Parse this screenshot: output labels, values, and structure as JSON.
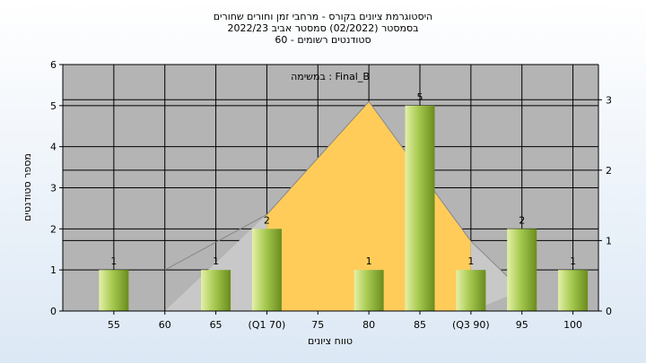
{
  "chart_data": {
    "type": "bar",
    "title_lines": [
      "היסטוגרמת ציונים בקורס - מרחבי זמן וחורים שחורים",
      "בסמסטר  (02/2022)  סמסטר אביב 2022/23",
      "סטודנטים רשומים - 60"
    ],
    "legend": "במשימה : Final_B",
    "categories": [
      "55",
      "60",
      "65",
      "(Q1 70)",
      "75",
      "80",
      "85",
      "(Q3 90)",
      "95",
      "100"
    ],
    "values": [
      1,
      0,
      1,
      2,
      0,
      1,
      5,
      1,
      2,
      1
    ],
    "data_labels": [
      "1",
      "",
      "1",
      "2",
      "",
      "1",
      "5",
      "1",
      "2",
      "1"
    ],
    "xlabel": "טווח ציונים",
    "ylabel": "מספר סטודנטים",
    "ylim": [
      0,
      6
    ],
    "yticks": [
      "0",
      "1",
      "2",
      "3",
      "4",
      "5",
      "6"
    ],
    "y2lim": [
      0,
      3.5
    ],
    "y2ticks": [
      "0",
      "1",
      "2",
      "3"
    ],
    "boxplot": {
      "min": 60,
      "q1": 70,
      "median": 80,
      "q3": 90,
      "max": 95,
      "q1_height": 2.35,
      "median_height": 3.0,
      "q3_height": 1.7
    },
    "grid": true,
    "colors": {
      "plot_bg": "#b4b4b4",
      "bar_light": "#e4f0a8",
      "bar_mid": "#a6ca50",
      "bar_dark": "#6a8c1e",
      "box_fill": "#ffcc5a",
      "whisker_fill": "#c8c8c8",
      "grid": "#000000"
    }
  }
}
